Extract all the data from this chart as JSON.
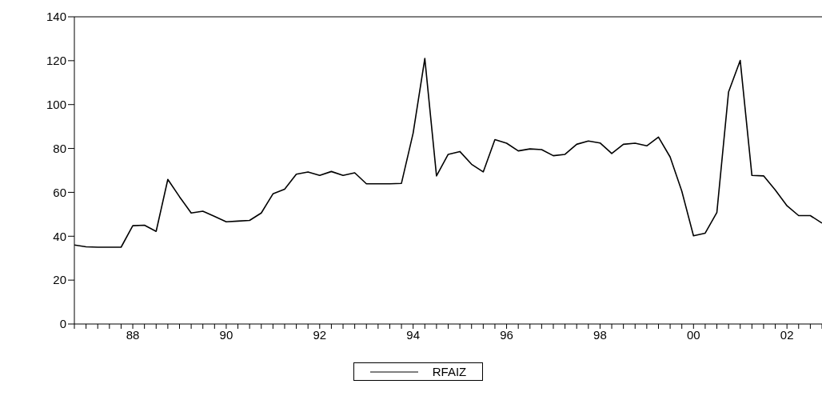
{
  "chart_data": {
    "type": "line",
    "x": [
      1986.75,
      1987,
      1987.25,
      1987.5,
      1987.75,
      1988,
      1988.25,
      1988.5,
      1988.75,
      1989,
      1989.25,
      1989.5,
      1989.75,
      1990,
      1990.25,
      1990.5,
      1990.75,
      1991,
      1991.25,
      1991.5,
      1991.75,
      1992,
      1992.25,
      1992.5,
      1992.75,
      1993,
      1993.25,
      1993.5,
      1993.75,
      1994,
      1994.25,
      1994.5,
      1994.75,
      1995,
      1995.25,
      1995.5,
      1995.75,
      1996,
      1996.25,
      1996.5,
      1996.75,
      1997,
      1997.25,
      1997.5,
      1997.75,
      1998,
      1998.25,
      1998.5,
      1998.75,
      1999,
      1999.25,
      1999.5,
      1999.75,
      2000,
      2000.25,
      2000.5,
      2000.75,
      2001,
      2001.25,
      2001.5,
      2001.75,
      2002,
      2002.25,
      2002.5,
      2002.75
    ],
    "series": [
      {
        "name": "RFAIZ",
        "color": "#000000",
        "values": [
          36,
          35.2,
          35,
          35,
          35,
          44.8,
          45,
          42.2,
          65.9,
          58,
          50.6,
          51.4,
          49,
          46.6,
          46.9,
          47.2,
          50.6,
          59.3,
          61.4,
          68.3,
          69.3,
          67.7,
          69.5,
          67.7,
          68.9,
          63.9,
          63.9,
          63.9,
          64.1,
          87,
          121,
          67.5,
          77.3,
          78.6,
          72.8,
          69.3,
          84,
          82.4,
          78.9,
          79.8,
          79.5,
          76.7,
          77.3,
          81.9,
          83.4,
          82.5,
          77.7,
          81.9,
          82.4,
          81.2,
          85.2,
          76.1,
          60.5,
          40.2,
          41.4,
          50.8,
          105.7,
          120.1,
          67.7,
          67.5,
          61.1,
          53.9,
          49.4,
          49.4,
          46
        ]
      }
    ],
    "xlim": [
      1986.75,
      2002.75
    ],
    "xticks": [
      {
        "value": 1986.75,
        "label": null
      },
      {
        "value": 1987,
        "label": null
      },
      {
        "value": 1987.25,
        "label": null
      },
      {
        "value": 1987.5,
        "label": null
      },
      {
        "value": 1987.75,
        "label": null
      },
      {
        "value": 1988,
        "label": "88"
      },
      {
        "value": 1988.25,
        "label": null
      },
      {
        "value": 1988.5,
        "label": null
      },
      {
        "value": 1988.75,
        "label": null
      },
      {
        "value": 1989,
        "label": null
      },
      {
        "value": 1989.25,
        "label": null
      },
      {
        "value": 1989.5,
        "label": null
      },
      {
        "value": 1989.75,
        "label": null
      },
      {
        "value": 1990,
        "label": "90"
      },
      {
        "value": 1990.25,
        "label": null
      },
      {
        "value": 1990.5,
        "label": null
      },
      {
        "value": 1990.75,
        "label": null
      },
      {
        "value": 1991,
        "label": null
      },
      {
        "value": 1991.25,
        "label": null
      },
      {
        "value": 1991.5,
        "label": null
      },
      {
        "value": 1991.75,
        "label": null
      },
      {
        "value": 1992,
        "label": "92"
      },
      {
        "value": 1992.25,
        "label": null
      },
      {
        "value": 1992.5,
        "label": null
      },
      {
        "value": 1992.75,
        "label": null
      },
      {
        "value": 1993,
        "label": null
      },
      {
        "value": 1993.25,
        "label": null
      },
      {
        "value": 1993.5,
        "label": null
      },
      {
        "value": 1993.75,
        "label": null
      },
      {
        "value": 1994,
        "label": "94"
      },
      {
        "value": 1994.25,
        "label": null
      },
      {
        "value": 1994.5,
        "label": null
      },
      {
        "value": 1994.75,
        "label": null
      },
      {
        "value": 1995,
        "label": null
      },
      {
        "value": 1995.25,
        "label": null
      },
      {
        "value": 1995.5,
        "label": null
      },
      {
        "value": 1995.75,
        "label": null
      },
      {
        "value": 1996,
        "label": "96"
      },
      {
        "value": 1996.25,
        "label": null
      },
      {
        "value": 1996.5,
        "label": null
      },
      {
        "value": 1996.75,
        "label": null
      },
      {
        "value": 1997,
        "label": null
      },
      {
        "value": 1997.25,
        "label": null
      },
      {
        "value": 1997.5,
        "label": null
      },
      {
        "value": 1997.75,
        "label": null
      },
      {
        "value": 1998,
        "label": "98"
      },
      {
        "value": 1998.25,
        "label": null
      },
      {
        "value": 1998.5,
        "label": null
      },
      {
        "value": 1998.75,
        "label": null
      },
      {
        "value": 1999,
        "label": null
      },
      {
        "value": 1999.25,
        "label": null
      },
      {
        "value": 1999.5,
        "label": null
      },
      {
        "value": 1999.75,
        "label": null
      },
      {
        "value": 2000,
        "label": "00"
      },
      {
        "value": 2000.25,
        "label": null
      },
      {
        "value": 2000.5,
        "label": null
      },
      {
        "value": 2000.75,
        "label": null
      },
      {
        "value": 2001,
        "label": null
      },
      {
        "value": 2001.25,
        "label": null
      },
      {
        "value": 2001.5,
        "label": null
      },
      {
        "value": 2001.75,
        "label": null
      },
      {
        "value": 2002,
        "label": "02"
      },
      {
        "value": 2002.25,
        "label": null
      },
      {
        "value": 2002.5,
        "label": null
      },
      {
        "value": 2002.75,
        "label": null
      }
    ],
    "ylim": [
      0,
      140
    ],
    "yticks": [
      0,
      20,
      40,
      60,
      80,
      100,
      120,
      140
    ],
    "grid": false,
    "legend": "bottom",
    "marker": "none",
    "line_style": "solid"
  }
}
